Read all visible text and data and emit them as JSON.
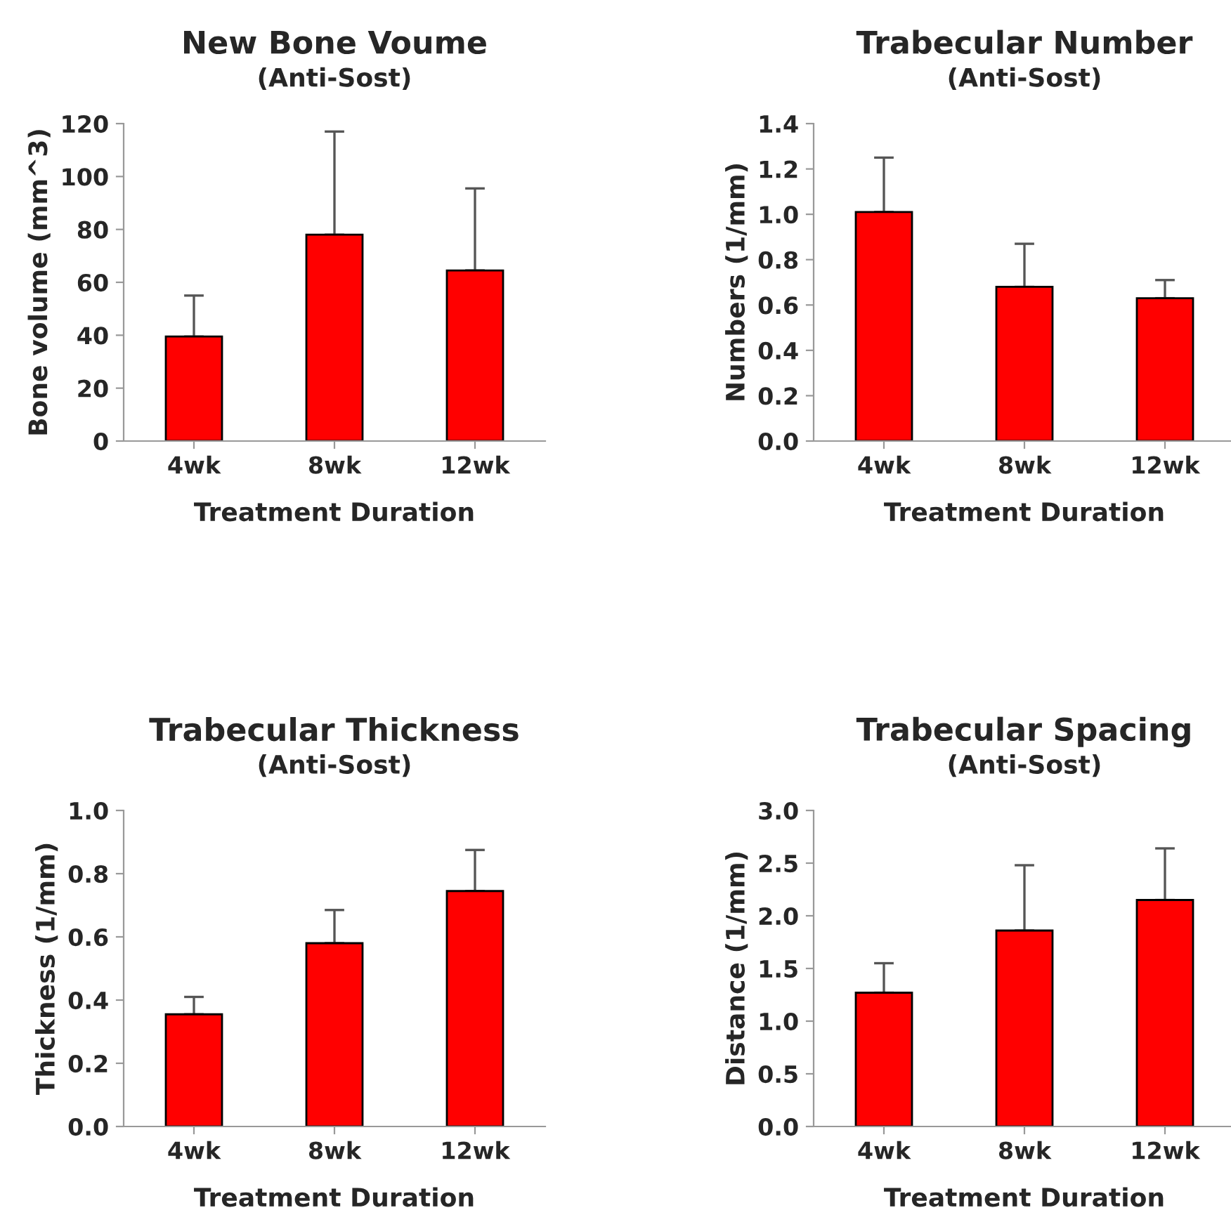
{
  "chart_data": [
    {
      "type": "bar",
      "title": "New Bone Voume",
      "subtitle": "(Anti-Sost)",
      "xlabel": "Treatment Duration",
      "ylabel": "Bone volume (mm^3)",
      "categories": [
        "4wk",
        "8wk",
        "12wk"
      ],
      "values": [
        39.5,
        78,
        64.5
      ],
      "errors": [
        [
          39.5,
          55
        ],
        [
          78,
          117
        ],
        [
          64.5,
          95.5
        ]
      ],
      "color": "#ff0000",
      "ylim": [
        0,
        120
      ],
      "yticks": [
        0,
        20,
        40,
        60,
        80,
        100,
        120
      ],
      "grid": false,
      "legend": false
    },
    {
      "type": "bar",
      "title": "Trabecular Number",
      "subtitle": "(Anti-Sost)",
      "xlabel": "Treatment Duration",
      "ylabel": "Numbers (1/mm)",
      "categories": [
        "4wk",
        "8wk",
        "12wk"
      ],
      "values": [
        1.01,
        0.68,
        0.63
      ],
      "errors": [
        [
          1.01,
          1.25
        ],
        [
          0.68,
          0.87
        ],
        [
          0.63,
          0.71
        ]
      ],
      "color": "#ff0000",
      "ylim": [
        0,
        1.4
      ],
      "yticks": [
        {
          "value": 0,
          "label": "0.0"
        },
        {
          "value": 0.2,
          "label": "0.2"
        },
        {
          "value": 0.4,
          "label": "0.4"
        },
        {
          "value": 0.6,
          "label": "0.6"
        },
        {
          "value": 0.8,
          "label": "0.8"
        },
        {
          "value": 1.0,
          "label": "1.0"
        },
        {
          "value": 1.2,
          "label": "1.2"
        },
        {
          "value": 1.4,
          "label": "1.4"
        }
      ],
      "grid": false,
      "legend": false
    },
    {
      "type": "bar",
      "title": "Trabecular Thickness",
      "subtitle": "(Anti-Sost)",
      "xlabel": "Treatment Duration",
      "ylabel": "Thickness (1/mm)",
      "categories": [
        "4wk",
        "8wk",
        "12wk"
      ],
      "values": [
        0.355,
        0.58,
        0.745
      ],
      "errors": [
        [
          0.355,
          0.41
        ],
        [
          0.58,
          0.685
        ],
        [
          0.745,
          0.875
        ]
      ],
      "color": "#ff0000",
      "ylim": [
        0,
        1.0
      ],
      "yticks": [
        {
          "value": 0,
          "label": "0.0"
        },
        {
          "value": 0.2,
          "label": "0.2"
        },
        {
          "value": 0.4,
          "label": "0.4"
        },
        {
          "value": 0.6,
          "label": "0.6"
        },
        {
          "value": 0.8,
          "label": "0.8"
        },
        {
          "value": 1.0,
          "label": "1.0"
        }
      ],
      "grid": false,
      "legend": false
    },
    {
      "type": "bar",
      "title": "Trabecular Spacing",
      "subtitle": "(Anti-Sost)",
      "xlabel": "Treatment Duration",
      "ylabel": "Distance (1/mm)",
      "categories": [
        "4wk",
        "8wk",
        "12wk"
      ],
      "values": [
        1.27,
        1.86,
        2.15
      ],
      "errors": [
        [
          1.27,
          1.55
        ],
        [
          1.86,
          2.48
        ],
        [
          2.15,
          2.64
        ]
      ],
      "color": "#ff0000",
      "ylim": [
        0,
        3.0
      ],
      "yticks": [
        {
          "value": 0,
          "label": "0.0"
        },
        {
          "value": 0.5,
          "label": "0.5"
        },
        {
          "value": 1.0,
          "label": "1.0"
        },
        {
          "value": 1.5,
          "label": "1.5"
        },
        {
          "value": 2.0,
          "label": "2.0"
        },
        {
          "value": 2.5,
          "label": "2.5"
        },
        {
          "value": 3.0,
          "label": "3.0"
        }
      ],
      "grid": false,
      "legend": false
    }
  ]
}
